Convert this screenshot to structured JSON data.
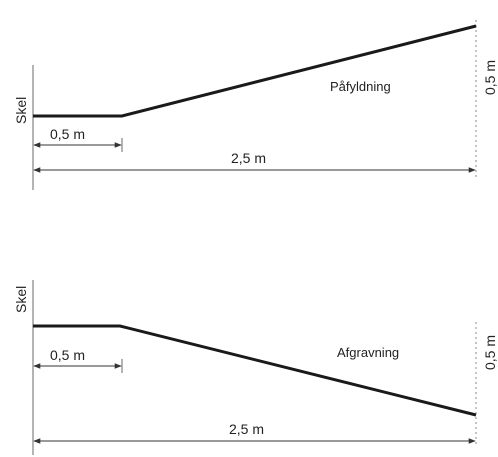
{
  "diagrams": [
    {
      "id": "fill",
      "boundary_label": "Skel",
      "area_label": "Påfyldning",
      "short_dimension": "0,5 m",
      "long_dimension": "2,5 m",
      "height_dimension": "0,5 m"
    },
    {
      "id": "excavation",
      "boundary_label": "Skel",
      "area_label": "Afgravning",
      "short_dimension": "0,5 m",
      "long_dimension": "2,5 m",
      "height_dimension": "0,5 m"
    }
  ]
}
